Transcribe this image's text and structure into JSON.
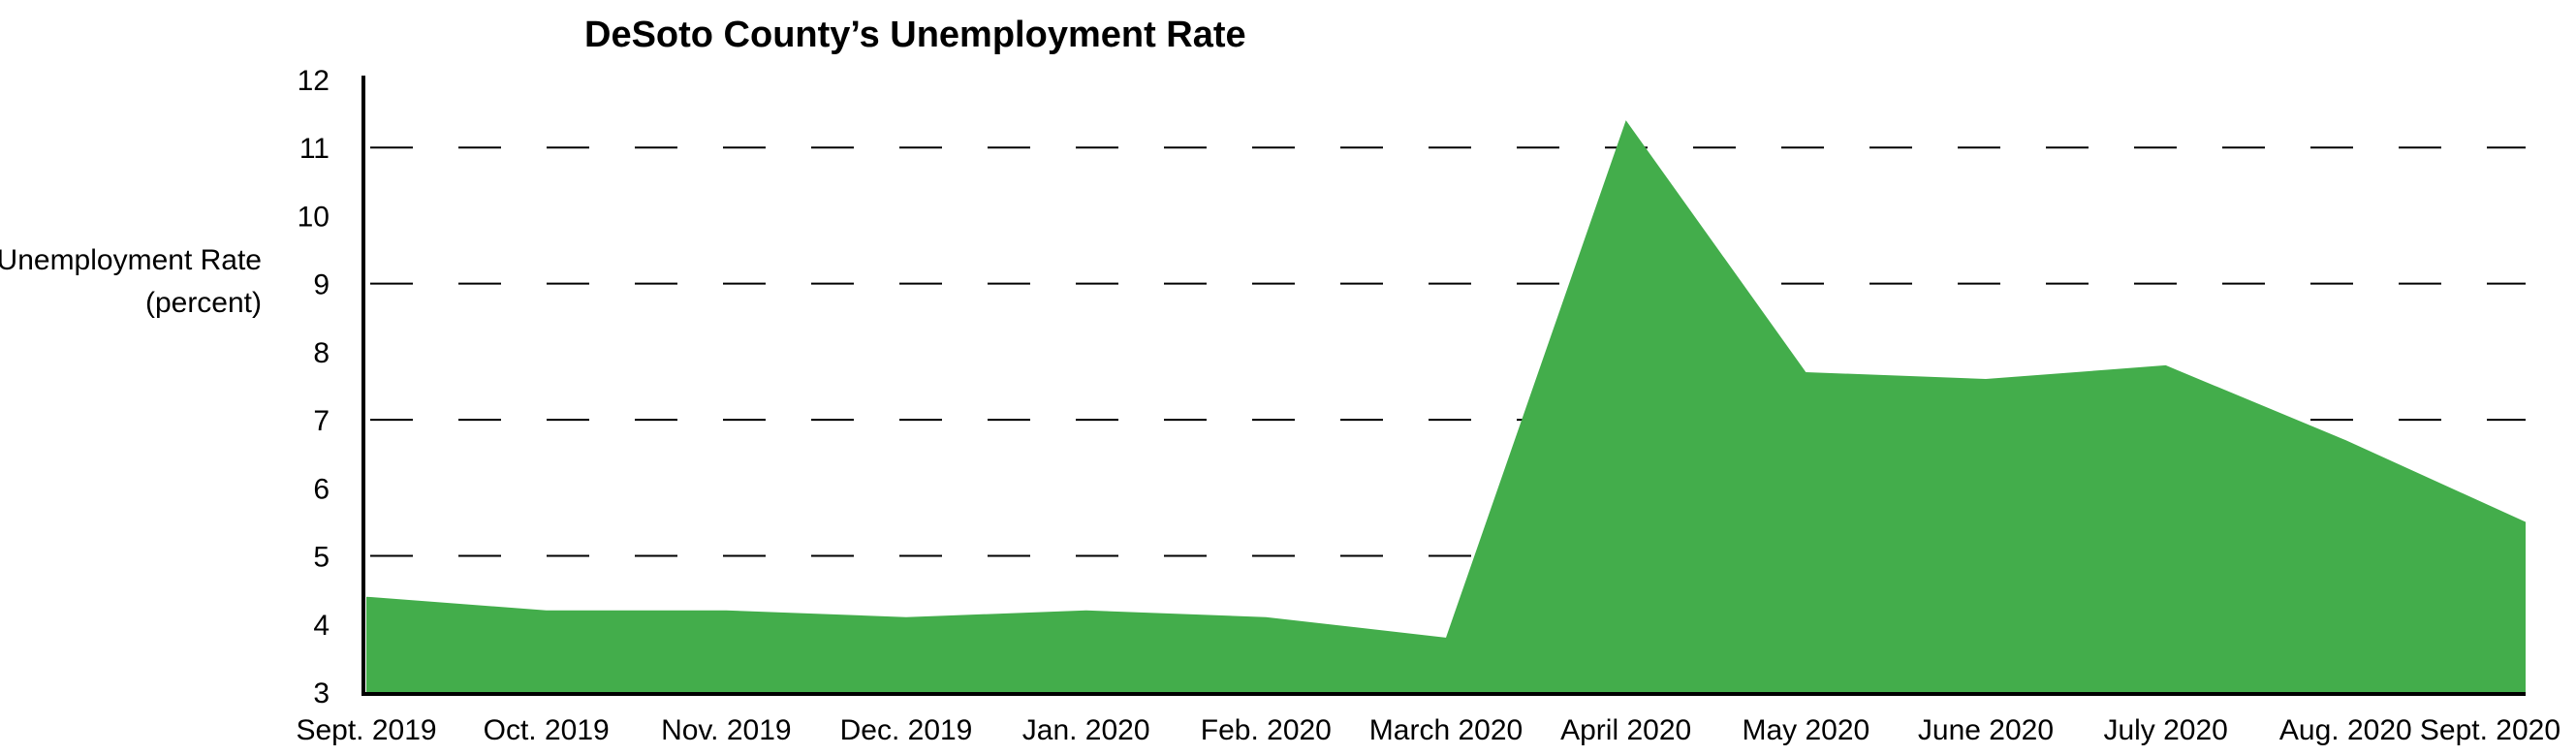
{
  "chart_data": {
    "type": "area",
    "title": "DeSoto County’s Unemployment Rate",
    "ylabel": [
      "Unemployment Rate",
      "(percent)"
    ],
    "xlabel": "",
    "categories": [
      "Sept. 2019",
      "Oct. 2019",
      "Nov. 2019",
      "Dec. 2019",
      "Jan. 2020",
      "Feb. 2020",
      "March 2020",
      "April 2020",
      "May 2020",
      "June 2020",
      "July 2020",
      "Aug. 2020",
      "Sept. 2020"
    ],
    "values": [
      4.4,
      4.2,
      4.2,
      4.1,
      4.2,
      4.1,
      3.8,
      11.4,
      7.7,
      7.6,
      7.8,
      6.7,
      5.5
    ],
    "ylim": [
      3,
      12
    ],
    "yticks": [
      3,
      4,
      5,
      6,
      7,
      8,
      9,
      10,
      11,
      12
    ],
    "gridlines": [
      5,
      7,
      9,
      11
    ],
    "grid_style": "dashed",
    "legend": "none",
    "colors": {
      "area": "#43AD4B",
      "axis": "#000000",
      "grid": "#000000"
    }
  }
}
